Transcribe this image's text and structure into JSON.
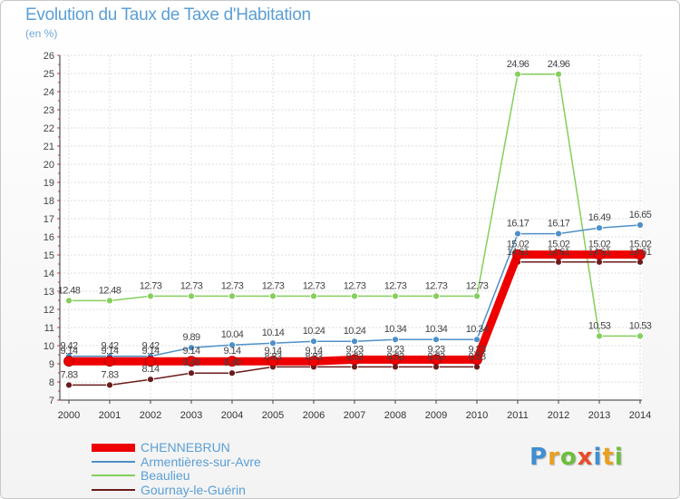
{
  "title": "Evolution du Taux de Taxe d'Habitation",
  "unit_label": "(en %)",
  "logo": {
    "text": "Proxiti",
    "letters": [
      {
        "ch": "P",
        "color": "#3f8fd2"
      },
      {
        "ch": "r",
        "color": "#e8a020"
      },
      {
        "ch": "o",
        "color": "#6cbf3c"
      },
      {
        "ch": "x",
        "color": "#e84c2a"
      },
      {
        "ch": "i",
        "color": "#3f8fd2"
      },
      {
        "ch": "t",
        "color": "#e8a020"
      },
      {
        "ch": "i",
        "color": "#6cbf3c"
      }
    ]
  },
  "chart_data": {
    "type": "line",
    "title": "Evolution du Taux de Taxe d'Habitation",
    "ylabel": "(en %)",
    "xlabel": "",
    "x": [
      2000,
      2001,
      2002,
      2003,
      2004,
      2005,
      2006,
      2007,
      2008,
      2009,
      2010,
      2011,
      2012,
      2013,
      2014
    ],
    "ylim": [
      7,
      26
    ],
    "yticks": [
      7,
      8,
      9,
      10,
      11,
      12,
      13,
      14,
      15,
      16,
      17,
      18,
      19,
      20,
      21,
      22,
      23,
      24,
      25,
      26
    ],
    "grid": true,
    "legend_position": "bottom-left",
    "series": [
      {
        "name": "CHENNEBRUN",
        "color": "#ee0000",
        "values": [
          9.14,
          9.14,
          9.14,
          9.14,
          9.14,
          9.14,
          9.14,
          9.23,
          9.23,
          9.23,
          9.23,
          15.02,
          15.02,
          15.02,
          15.02
        ],
        "labels": [
          "9.14",
          "9.14",
          "9.14",
          "9.14",
          "9.14",
          "9.14",
          "9.14",
          "9.23",
          "9.23",
          "9.23",
          "9.23",
          "15.02",
          "15.02",
          "15.02",
          "15.02"
        ]
      },
      {
        "name": "Armentières-sur-Avre",
        "color": "#4f90c8",
        "values": [
          9.42,
          9.42,
          9.42,
          9.89,
          10.04,
          10.14,
          10.24,
          10.24,
          10.34,
          10.34,
          10.34,
          16.17,
          16.17,
          16.49,
          16.65
        ],
        "labels": [
          "9.42",
          "9.42",
          "9.42",
          "9.89",
          "10.04",
          "10.14",
          "10.24",
          "10.24",
          "10.34",
          "10.34",
          "10.34",
          "16.17",
          "16.17",
          "16.49",
          "16.65"
        ]
      },
      {
        "name": "Beaulieu",
        "color": "#85cf5c",
        "values": [
          12.48,
          12.48,
          12.73,
          12.73,
          12.73,
          12.73,
          12.73,
          12.73,
          12.73,
          12.73,
          12.73,
          24.96,
          24.96,
          10.53,
          10.53
        ],
        "labels": [
          "12.48",
          "12.48",
          "12.73",
          "12.73",
          "12.73",
          "12.73",
          "12.73",
          "12.73",
          "12.73",
          "12.73",
          "12.73",
          "24.96",
          "24.96",
          "10.53",
          "10.53"
        ]
      },
      {
        "name": "Gournay-le-Guérin",
        "color": "#6b1c1c",
        "values": [
          7.83,
          7.83,
          8.14,
          8.49,
          8.49,
          8.83,
          8.83,
          8.83,
          8.83,
          8.83,
          8.83,
          14.61,
          14.61,
          14.61,
          14.61
        ],
        "labels": [
          "7.83",
          "7.83",
          "8.14",
          "8.49",
          "8.49",
          "8.83",
          "8.83",
          "8.83",
          "8.83",
          "8.83",
          "8.83",
          "14.61",
          "14.61",
          "14.61",
          "14.61"
        ]
      }
    ]
  }
}
